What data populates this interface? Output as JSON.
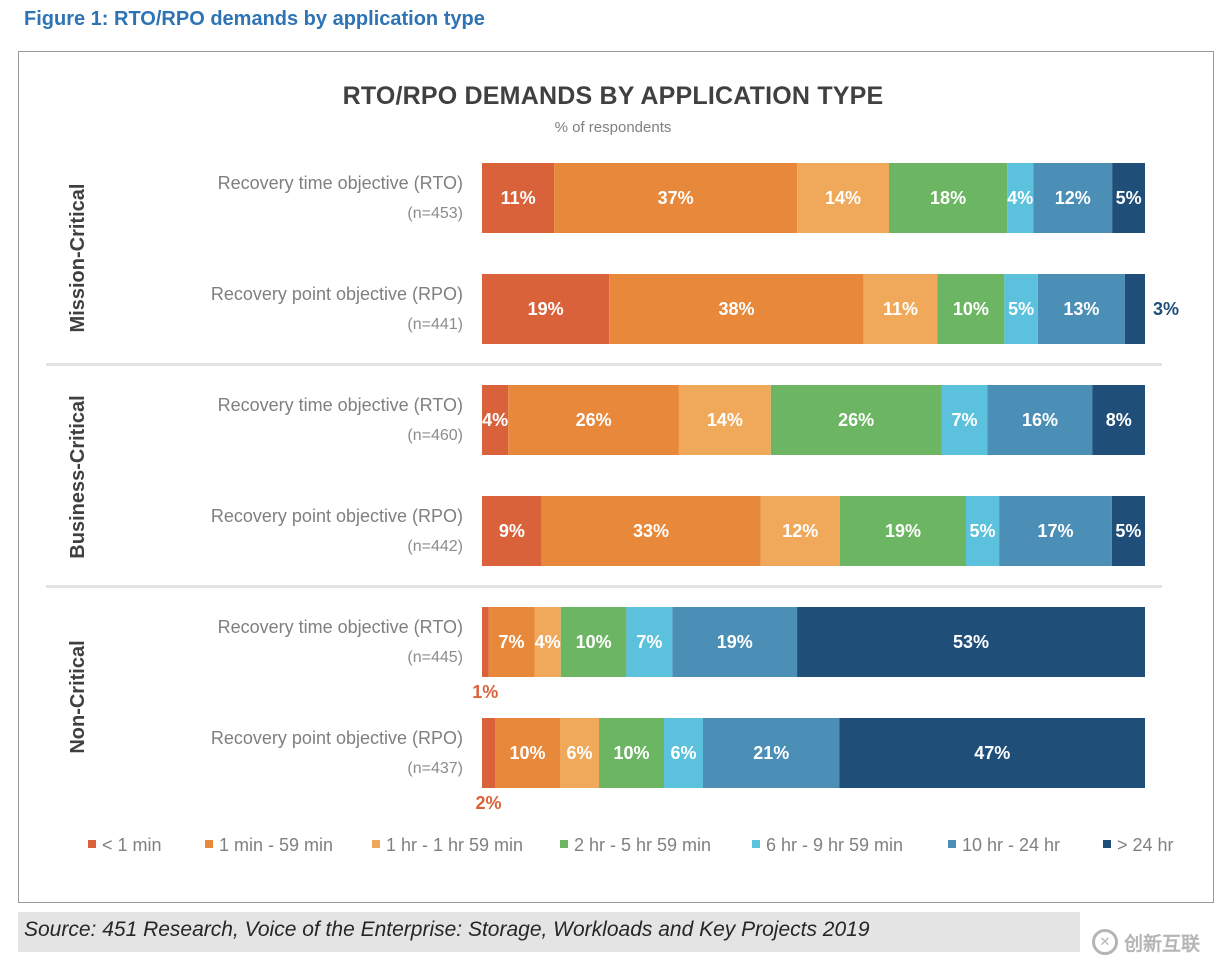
{
  "figure_caption": "Figure 1: RTO/RPO demands by application type",
  "source": "Source: 451 Research, Voice of the Enterprise: Storage, Workloads and Key Projects 2019",
  "watermark": "创新互联",
  "chart_data": {
    "type": "bar",
    "orientation": "horizontal",
    "stacked": "100%",
    "title": "RTO/RPO DEMANDS BY APPLICATION TYPE",
    "subtitle": "% of respondents",
    "legend_position": "bottom",
    "groups": [
      {
        "name": "Mission-Critical"
      },
      {
        "name": "Business-Critical"
      },
      {
        "name": "Non-Critical"
      }
    ],
    "series": [
      {
        "name": "< 1 min",
        "color": "#d9623b"
      },
      {
        "name": "1 min - 59 min",
        "color": "#e8883a"
      },
      {
        "name": "1 hr - 1 hr 59 min",
        "color": "#f0a95b"
      },
      {
        "name": "2 hr - 5 hr 59 min",
        "color": "#6cb562"
      },
      {
        "name": "6 hr - 9 hr 59 min",
        "color": "#5bc1dc"
      },
      {
        "name": "10 hr - 24 hr",
        "color": "#4c8fb6"
      },
      {
        "name": "> 24 hr",
        "color": "#1f4e79"
      }
    ],
    "rows": [
      {
        "group": 0,
        "label": "Recovery time objective (RTO)",
        "n": "(n=453)",
        "values": [
          11,
          37,
          14,
          18,
          4,
          12,
          5
        ]
      },
      {
        "group": 0,
        "label": "Recovery point objective (RPO)",
        "n": "(n=441)",
        "values": [
          19,
          38,
          11,
          10,
          5,
          13,
          3
        ]
      },
      {
        "group": 1,
        "label": "Recovery time objective (RTO)",
        "n": "(n=460)",
        "values": [
          4,
          26,
          14,
          26,
          7,
          16,
          8
        ]
      },
      {
        "group": 1,
        "label": "Recovery point objective (RPO)",
        "n": "(n=442)",
        "values": [
          9,
          33,
          12,
          19,
          5,
          17,
          5
        ]
      },
      {
        "group": 2,
        "label": "Recovery time objective (RTO)",
        "n": "(n=445)",
        "values": [
          1,
          7,
          4,
          10,
          7,
          19,
          53
        ]
      },
      {
        "group": 2,
        "label": "Recovery point objective (RPO)",
        "n": "(n=437)",
        "values": [
          2,
          10,
          6,
          10,
          6,
          21,
          47
        ]
      }
    ]
  }
}
